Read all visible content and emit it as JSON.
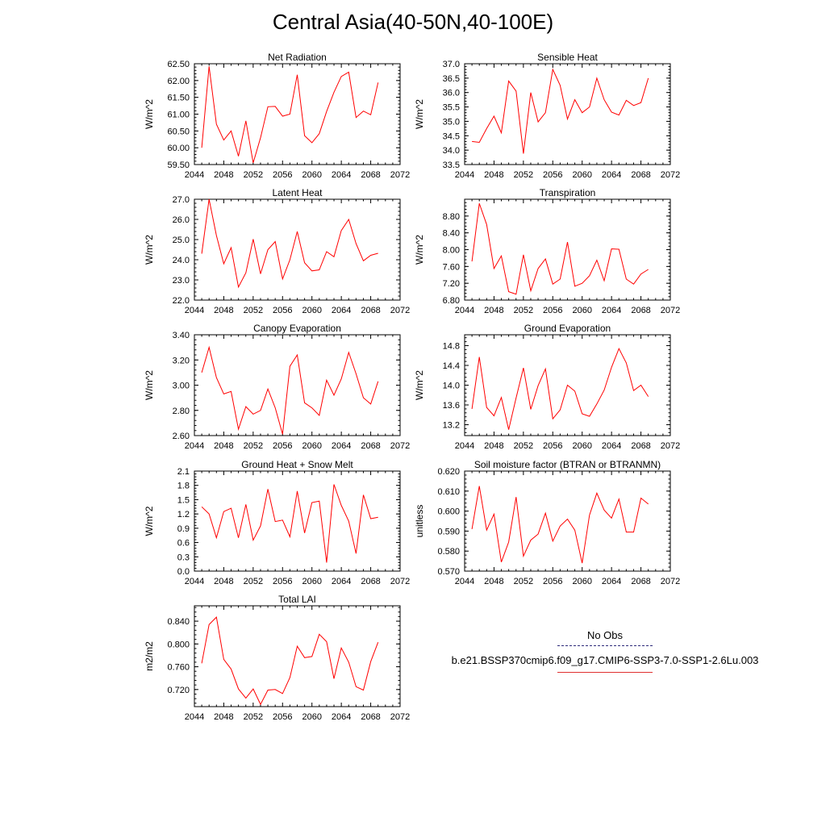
{
  "title": "Central Asia(40-50N,40-100E)",
  "colors": {
    "series": "#ff0000",
    "axis": "#000000",
    "obs": "#2d2a7a"
  },
  "legend": {
    "obs_label": "No Obs",
    "run_label": "b.e21.BSSP370cmip6.f09_g17.CMIP6-SSP3-7.0-SSP1-2.6Lu.003"
  },
  "chart_data": [
    {
      "type": "line",
      "title": "Net Radiation",
      "ylabel": "W/m^2",
      "xlim": [
        2044,
        2072
      ],
      "ylim": [
        59.5,
        62.5
      ],
      "xticks": [
        2044,
        2048,
        2052,
        2056,
        2060,
        2064,
        2068,
        2072
      ],
      "xtick_labels": [
        "2044",
        "2048",
        "2052",
        "2056",
        "2060",
        "2064",
        "2068",
        "2072"
      ],
      "yticks": [
        59.5,
        60.0,
        60.5,
        61.0,
        61.5,
        62.0,
        62.5
      ],
      "ytick_labels": [
        "59.50",
        "60.00",
        "60.50",
        "61.00",
        "61.50",
        "62.00",
        "62.50"
      ],
      "x": [
        2045,
        2046,
        2047,
        2048,
        2049,
        2050,
        2051,
        2052,
        2053,
        2054,
        2055,
        2056,
        2057,
        2058,
        2059,
        2060,
        2061,
        2062,
        2063,
        2064,
        2065,
        2066,
        2067,
        2068,
        2069
      ],
      "y": [
        60.0,
        62.42,
        60.7,
        60.23,
        60.5,
        59.75,
        60.8,
        59.55,
        60.3,
        61.22,
        61.23,
        60.94,
        61.0,
        62.17,
        60.36,
        60.15,
        60.42,
        61.08,
        61.65,
        62.12,
        62.25,
        60.9,
        61.09,
        60.98,
        61.94
      ]
    },
    {
      "type": "line",
      "title": "Sensible Heat",
      "ylabel": "W/m^2",
      "xlim": [
        2044,
        2072
      ],
      "ylim": [
        33.5,
        37.0
      ],
      "xticks": [
        2044,
        2048,
        2052,
        2056,
        2060,
        2064,
        2068,
        2072
      ],
      "xtick_labels": [
        "2044",
        "2048",
        "2052",
        "2056",
        "2060",
        "2064",
        "2068",
        "2072"
      ],
      "yticks": [
        33.5,
        34.0,
        34.5,
        35.0,
        35.5,
        36.0,
        36.5,
        37.0
      ],
      "ytick_labels": [
        "33.5",
        "34.0",
        "34.5",
        "35.0",
        "35.5",
        "36.0",
        "36.5",
        "37.0"
      ],
      "x": [
        2045,
        2046,
        2047,
        2048,
        2049,
        2050,
        2051,
        2052,
        2053,
        2054,
        2055,
        2056,
        2057,
        2058,
        2059,
        2060,
        2061,
        2062,
        2063,
        2064,
        2065,
        2066,
        2067,
        2068,
        2069
      ],
      "y": [
        34.3,
        34.27,
        34.75,
        35.18,
        34.6,
        36.4,
        36.05,
        33.88,
        36.0,
        34.98,
        35.3,
        36.8,
        36.25,
        35.08,
        35.75,
        35.3,
        35.5,
        36.5,
        35.75,
        35.32,
        35.22,
        35.73,
        35.55,
        35.65,
        36.5
      ]
    },
    {
      "type": "line",
      "title": "Latent Heat",
      "ylabel": "W/m^2",
      "xlim": [
        2044,
        2072
      ],
      "ylim": [
        22.0,
        27.0
      ],
      "xticks": [
        2044,
        2048,
        2052,
        2056,
        2060,
        2064,
        2068,
        2072
      ],
      "xtick_labels": [
        "2044",
        "2048",
        "2052",
        "2056",
        "2060",
        "2064",
        "2068",
        "2072"
      ],
      "yticks": [
        22.0,
        23.0,
        24.0,
        25.0,
        26.0,
        27.0
      ],
      "ytick_labels": [
        "22.0",
        "23.0",
        "24.0",
        "25.0",
        "26.0",
        "27.0"
      ],
      "x": [
        2045,
        2046,
        2047,
        2048,
        2049,
        2050,
        2051,
        2052,
        2053,
        2054,
        2055,
        2056,
        2057,
        2058,
        2059,
        2060,
        2061,
        2062,
        2063,
        2064,
        2065,
        2066,
        2067,
        2068,
        2069
      ],
      "y": [
        24.3,
        27.0,
        25.2,
        23.8,
        24.6,
        22.65,
        23.35,
        25.02,
        23.3,
        24.5,
        24.9,
        23.05,
        24.0,
        25.4,
        23.85,
        23.45,
        23.5,
        24.4,
        24.15,
        25.45,
        26.0,
        24.8,
        23.95,
        24.22,
        24.32
      ]
    },
    {
      "type": "line",
      "title": "Transpiration",
      "ylabel": "W/m^2",
      "xlim": [
        2044,
        2072
      ],
      "ylim": [
        6.8,
        9.2
      ],
      "xticks": [
        2044,
        2048,
        2052,
        2056,
        2060,
        2064,
        2068,
        2072
      ],
      "xtick_labels": [
        "2044",
        "2048",
        "2052",
        "2056",
        "2060",
        "2064",
        "2068",
        "2072"
      ],
      "yticks": [
        6.8,
        7.2,
        7.6,
        8.0,
        8.4,
        8.8
      ],
      "ytick_labels": [
        "6.80",
        "7.20",
        "7.60",
        "8.00",
        "8.40",
        "8.80"
      ],
      "x": [
        2045,
        2046,
        2047,
        2048,
        2049,
        2050,
        2051,
        2052,
        2053,
        2054,
        2055,
        2056,
        2057,
        2058,
        2059,
        2060,
        2061,
        2062,
        2063,
        2064,
        2065,
        2066,
        2067,
        2068,
        2069
      ],
      "y": [
        7.72,
        9.1,
        8.6,
        7.55,
        7.85,
        7.0,
        6.94,
        7.88,
        7.02,
        7.55,
        7.78,
        7.18,
        7.3,
        8.18,
        7.13,
        7.2,
        7.38,
        7.75,
        7.26,
        8.02,
        8.01,
        7.3,
        7.18,
        7.42,
        7.53
      ]
    },
    {
      "type": "line",
      "title": "Canopy Evaporation",
      "ylabel": "W/m^2",
      "xlim": [
        2044,
        2072
      ],
      "ylim": [
        2.6,
        3.4
      ],
      "xticks": [
        2044,
        2048,
        2052,
        2056,
        2060,
        2064,
        2068,
        2072
      ],
      "xtick_labels": [
        "2044",
        "2048",
        "2052",
        "2056",
        "2060",
        "2064",
        "2068",
        "2072"
      ],
      "yticks": [
        2.6,
        2.8,
        3.0,
        3.2,
        3.4
      ],
      "ytick_labels": [
        "2.60",
        "2.80",
        "3.00",
        "3.20",
        "3.40"
      ],
      "x": [
        2045,
        2046,
        2047,
        2048,
        2049,
        2050,
        2051,
        2052,
        2053,
        2054,
        2055,
        2056,
        2057,
        2058,
        2059,
        2060,
        2061,
        2062,
        2063,
        2064,
        2065,
        2066,
        2067,
        2068,
        2069
      ],
      "y": [
        3.1,
        3.3,
        3.06,
        2.93,
        2.95,
        2.65,
        2.83,
        2.77,
        2.8,
        2.97,
        2.82,
        2.61,
        3.15,
        3.24,
        2.86,
        2.82,
        2.76,
        3.04,
        2.92,
        3.05,
        3.26,
        3.09,
        2.9,
        2.85,
        3.03
      ]
    },
    {
      "type": "line",
      "title": "Ground Evaporation",
      "ylabel": "W/m^2",
      "xlim": [
        2044,
        2072
      ],
      "ylim": [
        12.98,
        15.02
      ],
      "xticks": [
        2044,
        2048,
        2052,
        2056,
        2060,
        2064,
        2068,
        2072
      ],
      "xtick_labels": [
        "2044",
        "2048",
        "2052",
        "2056",
        "2060",
        "2064",
        "2068",
        "2072"
      ],
      "yticks": [
        13.2,
        13.6,
        14.0,
        14.4,
        14.8
      ],
      "ytick_labels": [
        "13.2",
        "13.6",
        "14.0",
        "14.4",
        "14.8"
      ],
      "x": [
        2045,
        2046,
        2047,
        2048,
        2049,
        2050,
        2051,
        2052,
        2053,
        2054,
        2055,
        2056,
        2057,
        2058,
        2059,
        2060,
        2061,
        2062,
        2063,
        2064,
        2065,
        2066,
        2067,
        2068,
        2069
      ],
      "y": [
        13.52,
        14.57,
        13.55,
        13.38,
        13.75,
        13.1,
        13.74,
        14.35,
        13.51,
        13.99,
        14.33,
        13.32,
        13.5,
        14.0,
        13.88,
        13.42,
        13.37,
        13.62,
        13.9,
        14.36,
        14.74,
        14.45,
        13.89,
        14.0,
        13.77
      ]
    },
    {
      "type": "line",
      "title": "Ground Heat + Snow Melt",
      "ylabel": "W/m^2",
      "xlim": [
        2044,
        2072
      ],
      "ylim": [
        0.0,
        2.1
      ],
      "xticks": [
        2044,
        2048,
        2052,
        2056,
        2060,
        2064,
        2068,
        2072
      ],
      "xtick_labels": [
        "2044",
        "2048",
        "2052",
        "2056",
        "2060",
        "2064",
        "2068",
        "2072"
      ],
      "yticks": [
        0.0,
        0.3,
        0.6,
        0.9,
        1.2,
        1.5,
        1.8,
        2.1
      ],
      "ytick_labels": [
        "0.0",
        "0.3",
        "0.6",
        "0.9",
        "1.2",
        "1.5",
        "1.8",
        "2.1"
      ],
      "x": [
        2045,
        2046,
        2047,
        2048,
        2049,
        2050,
        2051,
        2052,
        2053,
        2054,
        2055,
        2056,
        2057,
        2058,
        2059,
        2060,
        2061,
        2062,
        2063,
        2064,
        2065,
        2066,
        2067,
        2068,
        2069
      ],
      "y": [
        1.35,
        1.2,
        0.7,
        1.25,
        1.32,
        0.7,
        1.4,
        0.65,
        0.95,
        1.72,
        1.04,
        1.07,
        0.72,
        1.68,
        0.8,
        1.44,
        1.47,
        0.18,
        1.82,
        1.38,
        1.05,
        0.37,
        1.6,
        1.1,
        1.13
      ]
    },
    {
      "type": "line",
      "title": "Soil moisture factor (BTRAN or BTRANMN)",
      "ylabel": "unitless",
      "xlim": [
        2044,
        2072
      ],
      "ylim": [
        0.57,
        0.62
      ],
      "xticks": [
        2044,
        2048,
        2052,
        2056,
        2060,
        2064,
        2068,
        2072
      ],
      "xtick_labels": [
        "2044",
        "2048",
        "2052",
        "2056",
        "2060",
        "2064",
        "2068",
        "2072"
      ],
      "yticks": [
        0.57,
        0.58,
        0.59,
        0.6,
        0.61,
        0.62
      ],
      "ytick_labels": [
        "0.570",
        "0.580",
        "0.590",
        "0.600",
        "0.610",
        "0.620"
      ],
      "x": [
        2045,
        2046,
        2047,
        2048,
        2049,
        2050,
        2051,
        2052,
        2053,
        2054,
        2055,
        2056,
        2057,
        2058,
        2059,
        2060,
        2061,
        2062,
        2063,
        2064,
        2065,
        2066,
        2067,
        2068,
        2069
      ],
      "y": [
        0.591,
        0.6125,
        0.5905,
        0.5985,
        0.5745,
        0.5845,
        0.607,
        0.5775,
        0.5855,
        0.5885,
        0.599,
        0.585,
        0.5925,
        0.596,
        0.5905,
        0.574,
        0.598,
        0.609,
        0.6005,
        0.5965,
        0.606,
        0.5895,
        0.5895,
        0.6065,
        0.6035
      ]
    },
    {
      "type": "line",
      "title": "Total LAI",
      "ylabel": "m2/m2",
      "xlim": [
        2044,
        2072
      ],
      "ylim": [
        0.69,
        0.867
      ],
      "xticks": [
        2044,
        2048,
        2052,
        2056,
        2060,
        2064,
        2068,
        2072
      ],
      "xtick_labels": [
        "2044",
        "2048",
        "2052",
        "2056",
        "2060",
        "2064",
        "2068",
        "2072"
      ],
      "yticks": [
        0.72,
        0.76,
        0.8,
        0.84
      ],
      "ytick_labels": [
        "0.720",
        "0.760",
        "0.800",
        "0.840"
      ],
      "x": [
        2045,
        2046,
        2047,
        2048,
        2049,
        2050,
        2051,
        2052,
        2053,
        2054,
        2055,
        2056,
        2057,
        2058,
        2059,
        2060,
        2061,
        2062,
        2063,
        2064,
        2065,
        2066,
        2067,
        2068,
        2069
      ],
      "y": [
        0.766,
        0.834,
        0.847,
        0.773,
        0.756,
        0.721,
        0.705,
        0.721,
        0.694,
        0.719,
        0.72,
        0.713,
        0.741,
        0.796,
        0.776,
        0.778,
        0.817,
        0.804,
        0.739,
        0.793,
        0.768,
        0.725,
        0.719,
        0.769,
        0.803
      ]
    }
  ]
}
